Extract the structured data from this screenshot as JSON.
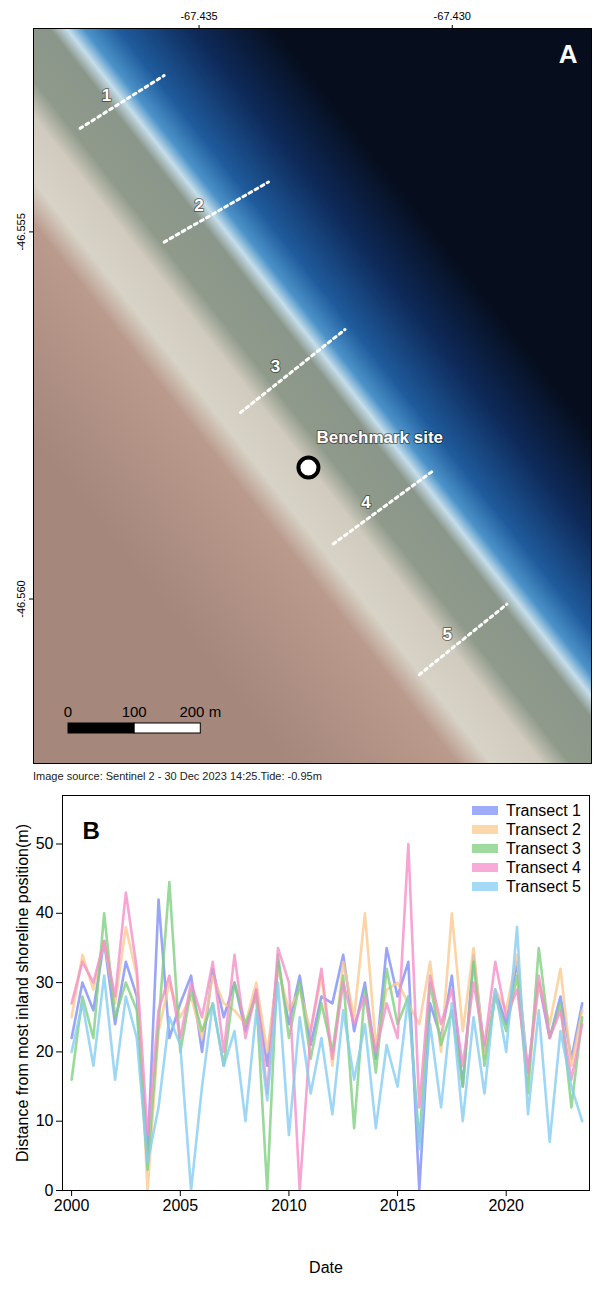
{
  "chart_data": [
    {
      "type": "map",
      "panel": "A",
      "xlim": [
        -67.43827,
        -67.42725
      ],
      "ylim": [
        -46.56224,
        -46.55223
      ],
      "xticks": [
        -67.435,
        {
          "value": -67.43,
          "label": "-67.430"
        }
      ],
      "yticks": [
        -46.555,
        {
          "value": -46.56,
          "label": "-46.560"
        }
      ],
      "transects": [
        {
          "label": "1",
          "lon": [
            -67.43735,
            -67.43569
          ],
          "lat": [
            -46.55359,
            -46.55287
          ]
        },
        {
          "label": "2",
          "lon": [
            -67.43569,
            -67.43363
          ],
          "lat": [
            -46.55514,
            -46.55432
          ]
        },
        {
          "label": "3",
          "lon": [
            -67.43418,
            -67.43212
          ],
          "lat": [
            -46.55746,
            -46.55633
          ]
        },
        {
          "label": "4",
          "lon": [
            -67.43235,
            -67.43039
          ],
          "lat": [
            -46.55925,
            -46.55826
          ]
        },
        {
          "label": "5",
          "lon": [
            -67.43065,
            -67.42892
          ],
          "lat": [
            -46.56103,
            -46.56007
          ]
        }
      ],
      "benchmark": {
        "label": "Benchmark site",
        "lon": -67.43284,
        "lat": -46.55821
      },
      "scale_bar": {
        "ticks": [
          0,
          100,
          {
            "value": 200,
            "label": "200 m"
          }
        ]
      },
      "caption": "Image source: Sentinel 2 - 30 Dec 2023 14:25.Tide: -0.95m"
    },
    {
      "type": "line",
      "panel": "B",
      "x": [
        "2000-01",
        "2000-07",
        "2001-01",
        "2001-07",
        "2002-01",
        "2002-07",
        "2003-01",
        "2003-07",
        "2004-01",
        "2004-07",
        "2005-01",
        "2005-07",
        "2006-01",
        "2006-07",
        "2007-01",
        "2007-07",
        "2008-01",
        "2008-07",
        "2009-01",
        "2009-07",
        "2010-01",
        "2010-07",
        "2011-01",
        "2011-07",
        "2012-01",
        "2012-07",
        "2013-01",
        "2013-07",
        "2014-01",
        "2014-07",
        "2015-01",
        "2015-07",
        "2016-01",
        "2016-07",
        "2017-01",
        "2017-07",
        "2018-01",
        "2018-07",
        "2019-01",
        "2019-07",
        "2020-01",
        "2020-07",
        "2021-01",
        "2021-07",
        "2022-01",
        "2022-07",
        "2023-01",
        "2023-07"
      ],
      "series": [
        {
          "name": "Transect 1",
          "color": "#7f8ff5",
          "values": [
            22,
            30,
            26,
            36,
            24,
            33,
            28,
            5,
            42,
            22,
            27,
            31,
            20,
            32,
            25,
            30,
            23,
            29,
            18,
            33,
            24,
            31,
            21,
            28,
            27,
            34,
            23,
            30,
            19,
            35,
            28,
            33,
            0,
            27,
            22,
            31,
            15,
            34,
            20,
            29,
            24,
            33,
            17,
            30,
            22,
            28,
            19,
            27
          ]
        },
        {
          "name": "Transect 2",
          "color": "#fbc98f",
          "values": [
            25,
            34,
            29,
            36,
            27,
            38,
            31,
            0,
            23,
            30,
            25,
            28,
            22,
            31,
            27,
            26,
            24,
            30,
            20,
            32,
            26,
            29,
            23,
            31,
            18,
            33,
            25,
            40,
            21,
            29,
            30,
            27,
            24,
            33,
            20,
            40,
            23,
            35,
            19,
            29,
            26,
            34,
            16,
            30,
            24,
            32,
            18,
            26
          ]
        },
        {
          "name": "Transect 3",
          "color": "#7fcf7f",
          "values": [
            16,
            28,
            22,
            40,
            25,
            30,
            26,
            3,
            24,
            44.5,
            20,
            29,
            23,
            27,
            18,
            30,
            24,
            28,
            0,
            34,
            22,
            30,
            19,
            27,
            20,
            31,
            9,
            29,
            17,
            32,
            24,
            28,
            7,
            30,
            21,
            26,
            15,
            33,
            18,
            28,
            23,
            31,
            14,
            35,
            22,
            27,
            12,
            25
          ]
        },
        {
          "name": "Transect 4",
          "color": "#f58fc8",
          "values": [
            27,
            33,
            30,
            36,
            28,
            43,
            32,
            8,
            26,
            31,
            22,
            30,
            25,
            33,
            20,
            34,
            22,
            29,
            14,
            35,
            30,
            0,
            23,
            32,
            19,
            30,
            24,
            28,
            20,
            27,
            22,
            50,
            12,
            31,
            24,
            29,
            18,
            30,
            21,
            33,
            25,
            29,
            17,
            31,
            22,
            26,
            16,
            24
          ]
        },
        {
          "name": "Transect 5",
          "color": "#86cdf3",
          "values": [
            20,
            27,
            18,
            31,
            16,
            28,
            22,
            4,
            12,
            25,
            21,
            0,
            15,
            27,
            18,
            23,
            10,
            26,
            13,
            30,
            8,
            25,
            14,
            22,
            11,
            26,
            16,
            24,
            9,
            21,
            15,
            28,
            6,
            24,
            12,
            27,
            10,
            25,
            14,
            29,
            20,
            38,
            11,
            26,
            7,
            23,
            15,
            10
          ]
        }
      ],
      "xlim": [
        "1999-08",
        "2023-11"
      ],
      "xticks": [
        {
          "value": "2000-01",
          "label": "2000"
        },
        {
          "value": "2005-01",
          "label": "2005"
        },
        {
          "value": "2010-01",
          "label": "2010"
        },
        {
          "value": "2015-01",
          "label": "2015"
        },
        {
          "value": "2020-01",
          "label": "2020"
        }
      ],
      "ylim": [
        0,
        57
      ],
      "yticks": [
        0,
        10,
        20,
        30,
        40,
        50
      ],
      "x_label": "Date",
      "y_label": "Distance from most inland shoreline position(m)",
      "legend": "upper right"
    }
  ]
}
